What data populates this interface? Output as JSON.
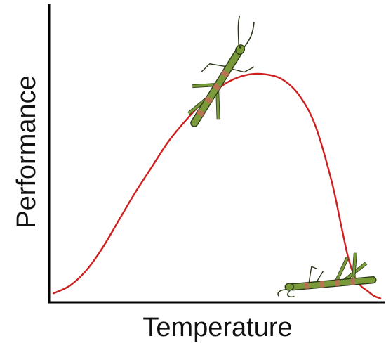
{
  "chart_data": {
    "type": "line",
    "title": "",
    "xlabel": "Temperature",
    "ylabel": "Performance",
    "xticks": [],
    "yticks": [],
    "xlim": [
      0,
      100
    ],
    "ylim": [
      0,
      100
    ],
    "grid": false,
    "legend": "none",
    "series": [
      {
        "color": "#d01f1f",
        "x": [
          0,
          5,
          10,
          15,
          20,
          25,
          30,
          35,
          40,
          45,
          50,
          55,
          60,
          65,
          70,
          75,
          80,
          85,
          88,
          90,
          92,
          94,
          96,
          98,
          100
        ],
        "y": [
          3,
          6,
          12,
          21,
          32,
          43,
          53,
          63,
          71,
          78,
          84,
          88,
          90,
          90,
          88,
          82,
          70,
          48,
          30,
          18,
          10,
          6,
          4,
          2,
          1
        ]
      }
    ],
    "images": [
      {
        "icon": "stick-insect-icon",
        "description": "stick insect climbing near the performance peak"
      },
      {
        "icon": "stick-insect-icon",
        "description": "stick insect lying on its back at high temperature"
      }
    ],
    "colors": {
      "axis": "#000000",
      "curve": "#d01f1f",
      "insect_body": "#7a9a3a",
      "insect_stripe": "#c96a5a",
      "insect_outline": "#2a3a18"
    }
  }
}
